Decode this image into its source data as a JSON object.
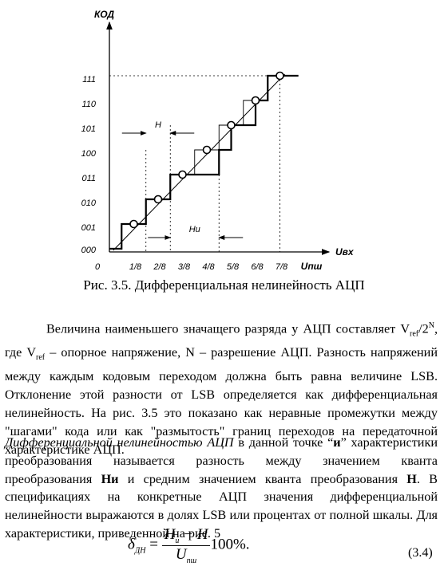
{
  "chart_data": {
    "type": "line",
    "title": "",
    "xlabel": "Uвх",
    "ylabel": "КОД",
    "x_ticks": [
      "0",
      "1/8",
      "2/8",
      "3/8",
      "4/8",
      "5/8",
      "6/8",
      "7/8",
      "Uпш"
    ],
    "y_ticks": [
      "000",
      "001",
      "010",
      "011",
      "100",
      "101",
      "110",
      "111"
    ],
    "ideal_transitions": [
      0.0625,
      0.1875,
      0.3125,
      0.4375,
      0.5625,
      0.6875,
      0.8125
    ],
    "actual_transitions": [
      0.0625,
      0.1875,
      0.3125,
      0.5625,
      0.5625,
      0.6875,
      0.8125
    ],
    "code_centers": [
      {
        "x": 0.125,
        "code": 1
      },
      {
        "x": 0.25,
        "code": 2
      },
      {
        "x": 0.375,
        "code": 3
      },
      {
        "x": 0.5,
        "code": 4
      },
      {
        "x": 0.625,
        "code": 5
      },
      {
        "x": 0.75,
        "code": 6
      },
      {
        "x": 0.875,
        "code": 7
      }
    ],
    "annotations": [
      "H",
      "Hи"
    ]
  },
  "caption": "Рис. 3.5. Дифференциальная нелинейность АЦП",
  "paragraph1": {
    "t1": "Величина наименьшего значащего разряда у АЦП составляет V",
    "sub1": "ref",
    "t2": "/2",
    "sup1": "N",
    "t3": ", где V",
    "sub2": "ref",
    "t4": " – опорное напряжение, N – разрешение АЦП. Разность напряжений между каждым кодовым переходом должна быть равна величине LSB. Отклонение этой разности от LSB определяется как дифференциальная нелинейность. На рис. 3.5 это показано как неравные промежутки между \"шагами\" кода или как \"размытость\" границ переходов на передаточной характеристике АЦП."
  },
  "paragraph2": {
    "term": "Дифференциальной нелинейностью АЦП",
    "t1": " в данной точке “",
    "point": "и",
    "t2": "” характеристики преобразования называется разность между значением кванта преобразования ",
    "b1": "Hи",
    "t3": " и средним значением кванта преобразования ",
    "b2": "H",
    "t4": ". В спецификациях на конкретные АЦП значения дифференциальной нелинейности выражаются в долях LSB или процентах от полной шкалы. Для характеристики, приведенной на рис. 5"
  },
  "formula": {
    "lhs": "δ",
    "lhs_sub": "ДН",
    "eq": " = ",
    "num": "H",
    "num_sub": "и",
    "num_rest": " − H",
    "den": "U",
    "den_sub": "пш",
    "tail": "100%.",
    "number": "(3.4)"
  }
}
